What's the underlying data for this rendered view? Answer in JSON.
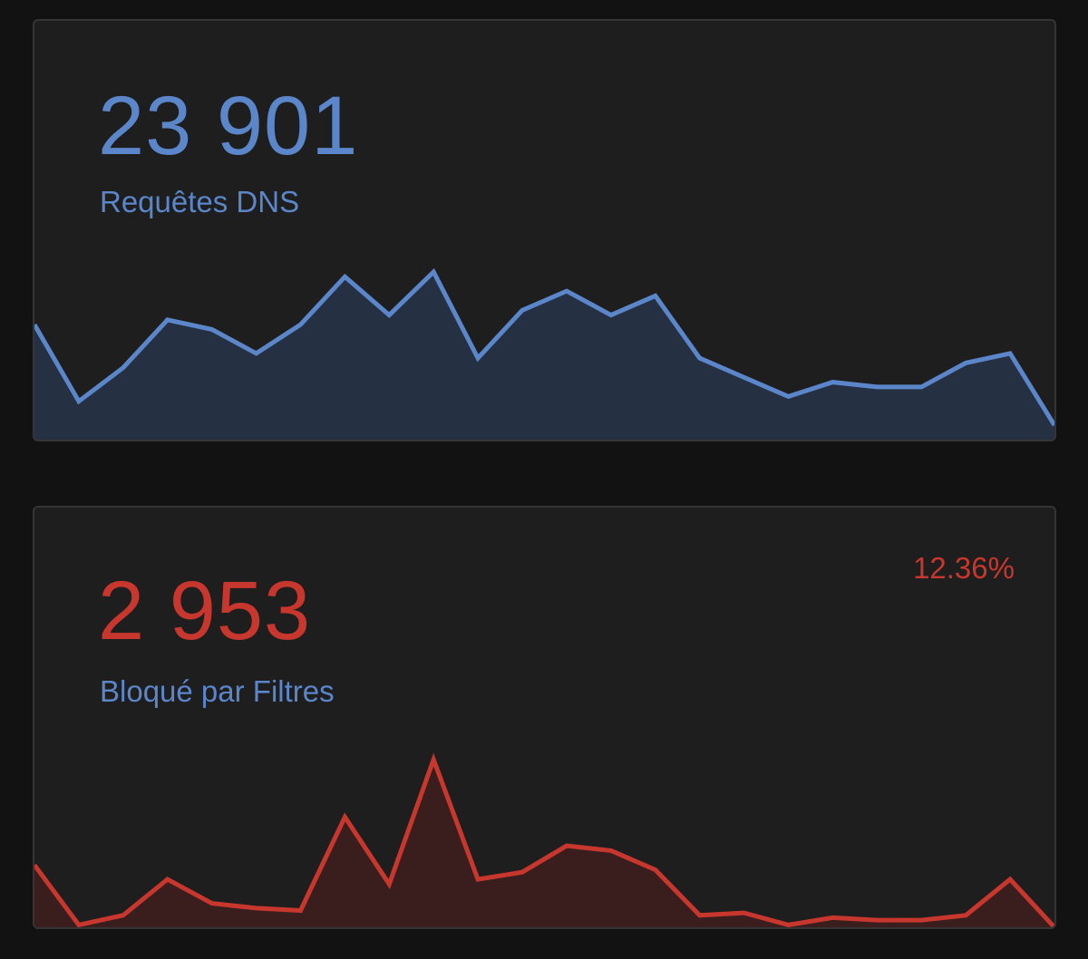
{
  "cards": {
    "dns": {
      "value": "23 901",
      "label": "Requêtes DNS",
      "color": "#5b86c9",
      "fill": "#253042"
    },
    "blocked": {
      "value": "2 953",
      "label": "Bloqué par Filtres",
      "percent": "12.36%",
      "color": "#c8372d",
      "fill": "#3a1e1e"
    }
  },
  "chart_data": [
    {
      "type": "area",
      "series": [
        {
          "values": [
            24,
            8,
            15,
            25,
            23,
            18,
            24,
            34,
            26,
            35,
            17,
            27,
            31,
            26,
            30,
            17,
            13,
            9,
            12,
            11,
            11,
            16,
            18,
            3
          ]
        }
      ],
      "axes_visible": false,
      "grid": false
    },
    {
      "type": "area",
      "series": [
        {
          "values": [
            13,
            0.5,
            2.5,
            10,
            5,
            4,
            3.5,
            23,
            9,
            35,
            10,
            11.5,
            17,
            16,
            12,
            2.5,
            3,
            0.5,
            2,
            1.5,
            1.5,
            2.5,
            10,
            0
          ]
        }
      ],
      "axes_visible": false,
      "grid": false
    }
  ]
}
